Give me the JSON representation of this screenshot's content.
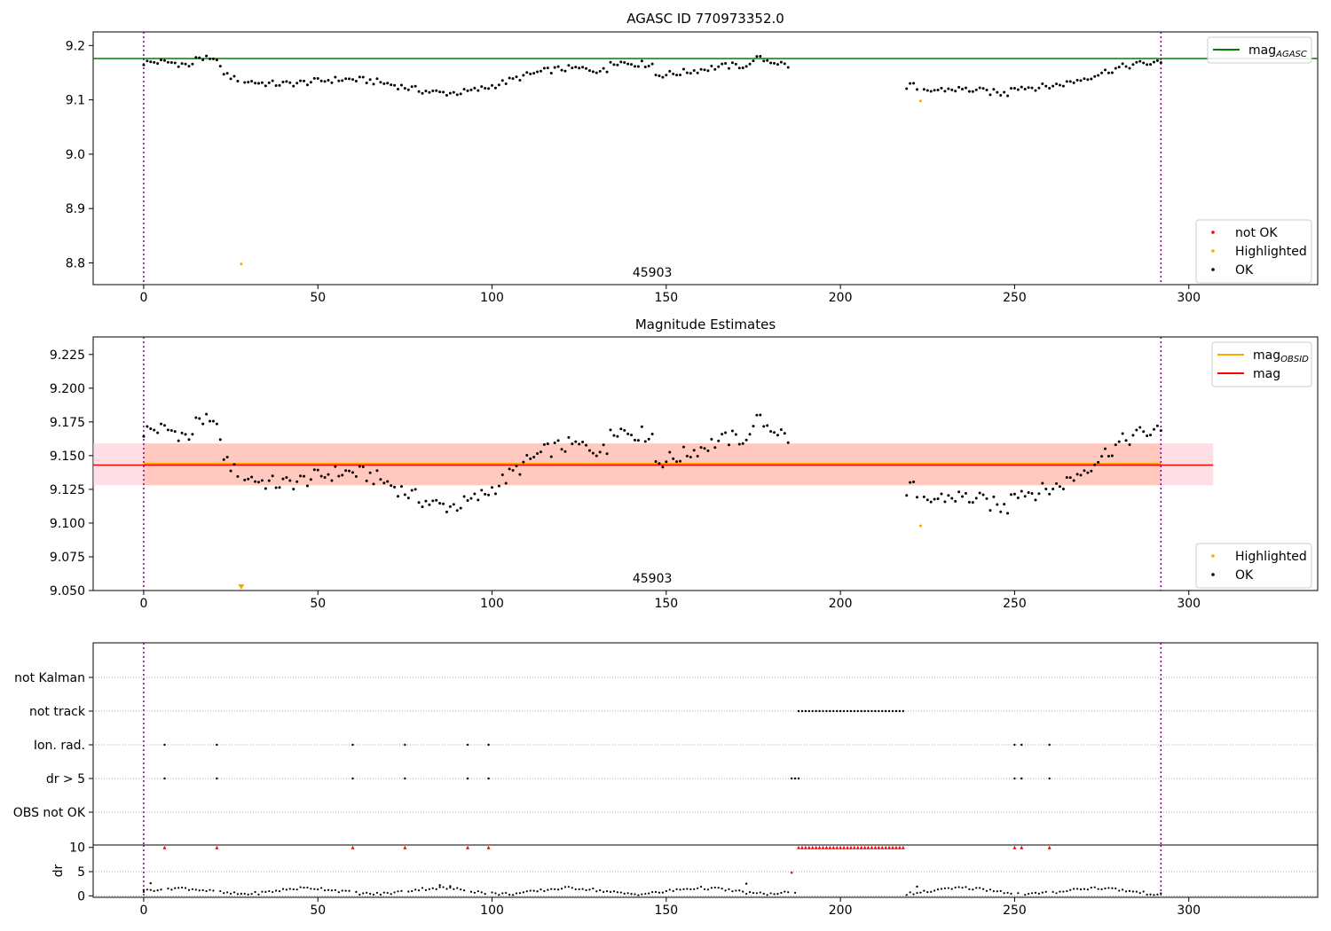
{
  "chart_data": [
    {
      "type": "scatter",
      "title": "AGASC ID 770973352.0",
      "xlim": [
        -14.5,
        337
      ],
      "ylim": [
        8.76,
        9.225
      ],
      "xticks": [
        0,
        50,
        100,
        150,
        200,
        250,
        300
      ],
      "yticks": [
        8.8,
        8.9,
        9.0,
        9.1,
        9.2
      ],
      "obsid_label": "45903",
      "vlines": [
        0,
        292
      ],
      "hlines": [
        {
          "name": "mag",
          "name_sub": "AGASC",
          "y": 9.176,
          "color": "#008000"
        }
      ],
      "legend_top": {
        "placement": "top-right",
        "entries": [
          {
            "label": "mag",
            "sub": "AGASC",
            "color": "#008000"
          }
        ]
      },
      "legend_bottom": {
        "placement": "bottom-right",
        "entries": [
          {
            "label": "not OK",
            "color": "#ff0000"
          },
          {
            "label": "Highlighted",
            "color": "#ffa500"
          },
          {
            "label": "OK",
            "color": "#000000"
          }
        ]
      },
      "highlighted": [
        {
          "x": 28,
          "y": 8.798
        },
        {
          "x": 223,
          "y": 9.098
        }
      ]
    },
    {
      "type": "scatter",
      "title": "Magnitude Estimates",
      "xlim": [
        -14.5,
        337
      ],
      "ylim": [
        9.05,
        9.238
      ],
      "xticks": [
        0,
        50,
        100,
        150,
        200,
        250,
        300
      ],
      "yticks": [
        9.05,
        9.075,
        9.1,
        9.125,
        9.15,
        9.175,
        9.2,
        9.225
      ],
      "ytick_labels": [
        "9.050",
        "9.075",
        "9.100",
        "9.125",
        "9.150",
        "9.175",
        "9.200",
        "9.225"
      ],
      "obsid_label": "45903",
      "vlines": [
        0,
        292
      ],
      "bands": [
        {
          "y0": 9.128,
          "y1": 9.159,
          "x0": -14.5,
          "x1": 307,
          "color": "#ffc0cb",
          "alpha": 0.5
        },
        {
          "y0": 9.128,
          "y1": 9.159,
          "x0": 0,
          "x1": 292,
          "color": "#ffa07a",
          "alpha": 0.35
        }
      ],
      "lines": [
        {
          "name": "mag",
          "name_sub": "OBSID",
          "y": 9.144,
          "x0": 0,
          "x1": 292,
          "color": "#ffa500",
          "width": 2
        },
        {
          "name": "mag",
          "y": 9.143,
          "x0": -14.5,
          "x1": 307,
          "color": "#ff0000",
          "width": 1.5
        }
      ],
      "legend_top": {
        "placement": "top-right",
        "entries": [
          {
            "label": "mag",
            "sub": "OBSID",
            "color": "#ffa500"
          },
          {
            "label": "mag",
            "color": "#ff0000"
          }
        ]
      },
      "legend_bottom": {
        "placement": "bottom-right",
        "entries": [
          {
            "label": "Highlighted",
            "color": "#ffa500"
          },
          {
            "label": "OK",
            "color": "#000000"
          }
        ]
      },
      "highlighted": [
        {
          "x": 223,
          "y": 9.098
        }
      ],
      "off_axis_marker": {
        "x": 28,
        "color": "#ffa500"
      }
    },
    {
      "type": "scatter",
      "xlim": [
        -14.5,
        337
      ],
      "xticks": [
        0,
        50,
        100,
        150,
        200,
        250,
        300
      ],
      "vlines": [
        0,
        292
      ],
      "flag_rows": [
        "not Kalman",
        "not track",
        "Ion. rad.",
        "dr > 5",
        "OBS not OK"
      ],
      "flags": {
        "not track": {
          "x0": 188,
          "x1": 218
        },
        "Ion. rad.": [
          6,
          21,
          60,
          75,
          93,
          99,
          250,
          252,
          260
        ],
        "dr > 5": [
          6,
          21,
          60,
          75,
          93,
          99,
          186,
          187,
          188,
          250,
          252,
          260
        ]
      }
    },
    {
      "type": "scatter",
      "ylabel": "dr",
      "xlim": [
        -14.5,
        337
      ],
      "ylim": [
        -0.3,
        10.5
      ],
      "xticks": [
        0,
        50,
        100,
        150,
        200,
        250,
        300
      ],
      "yticks": [
        0,
        5,
        10
      ],
      "vlines": [
        0,
        292
      ],
      "capped_points": [
        6,
        21,
        60,
        75,
        93,
        99,
        250,
        252,
        260
      ],
      "capped_range": {
        "x0": 188,
        "x1": 218
      },
      "red_points": [
        {
          "x": 186,
          "y": 4.8
        }
      ],
      "black_points": [
        {
          "x": 0,
          "y": 1.2
        },
        {
          "x": 2,
          "y": 2.6
        },
        {
          "x": 85,
          "y": 2.2
        },
        {
          "x": 88,
          "y": 2.0
        },
        {
          "x": 173,
          "y": 2.5
        },
        {
          "x": 222,
          "y": 1.9
        }
      ]
    }
  ]
}
